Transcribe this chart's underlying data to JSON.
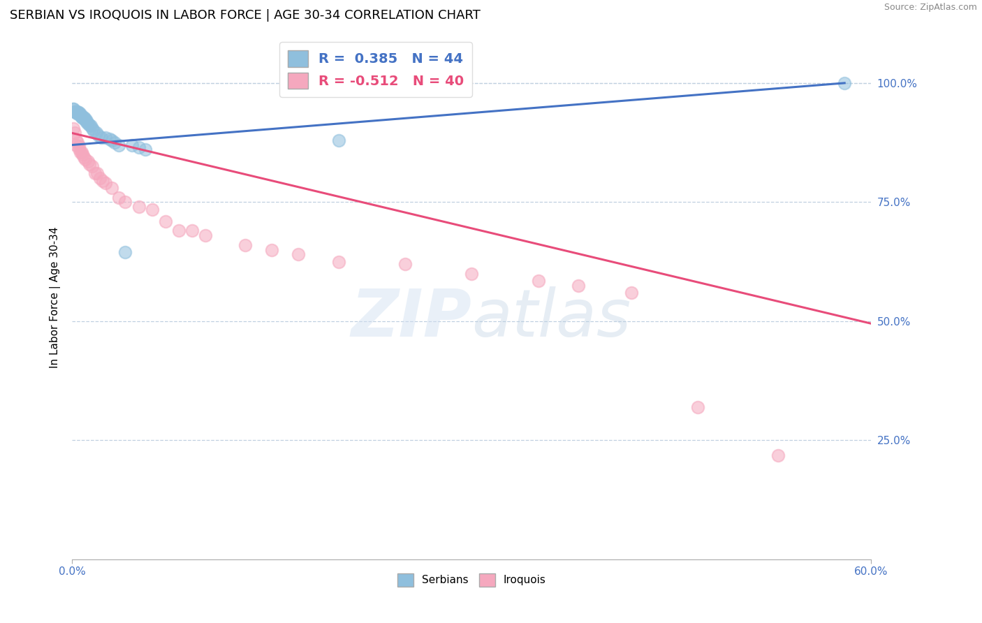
{
  "title": "SERBIAN VS IROQUOIS IN LABOR FORCE | AGE 30-34 CORRELATION CHART",
  "source_text": "Source: ZipAtlas.com",
  "ylabel": "In Labor Force | Age 30-34",
  "xlim": [
    0.0,
    0.6
  ],
  "ylim": [
    0.0,
    1.1
  ],
  "ytick_vals": [
    0.25,
    0.5,
    0.75,
    1.0
  ],
  "ytick_labels": [
    "25.0%",
    "50.0%",
    "75.0%",
    "100.0%"
  ],
  "serbian_R": 0.385,
  "serbian_N": 44,
  "iroquois_R": -0.512,
  "iroquois_N": 40,
  "serbian_color": "#8fbfdd",
  "iroquois_color": "#f5a8be",
  "serbian_line_color": "#4472c4",
  "iroquois_line_color": "#e84c7a",
  "legend_serbian_label": "Serbians",
  "legend_iroquois_label": "Iroquois",
  "serbian_x": [
    0.001,
    0.001,
    0.002,
    0.002,
    0.003,
    0.003,
    0.004,
    0.004,
    0.004,
    0.005,
    0.005,
    0.005,
    0.006,
    0.006,
    0.007,
    0.007,
    0.007,
    0.008,
    0.008,
    0.009,
    0.009,
    0.01,
    0.01,
    0.011,
    0.011,
    0.012,
    0.013,
    0.014,
    0.015,
    0.016,
    0.018,
    0.02,
    0.022,
    0.025,
    0.028,
    0.03,
    0.032,
    0.035,
    0.04,
    0.045,
    0.05,
    0.055,
    0.2,
    0.58
  ],
  "serbian_y": [
    0.945,
    0.945,
    0.94,
    0.94,
    0.94,
    0.938,
    0.94,
    0.938,
    0.935,
    0.938,
    0.935,
    0.935,
    0.935,
    0.932,
    0.93,
    0.93,
    0.928,
    0.93,
    0.928,
    0.928,
    0.925,
    0.925,
    0.922,
    0.92,
    0.918,
    0.915,
    0.912,
    0.91,
    0.905,
    0.9,
    0.895,
    0.89,
    0.885,
    0.885,
    0.882,
    0.88,
    0.875,
    0.87,
    0.645,
    0.87,
    0.865,
    0.86,
    0.88,
    1.0
  ],
  "iroquois_x": [
    0.001,
    0.002,
    0.003,
    0.003,
    0.004,
    0.005,
    0.005,
    0.006,
    0.007,
    0.008,
    0.009,
    0.01,
    0.012,
    0.013,
    0.015,
    0.017,
    0.019,
    0.021,
    0.023,
    0.025,
    0.03,
    0.035,
    0.04,
    0.05,
    0.06,
    0.07,
    0.08,
    0.09,
    0.1,
    0.13,
    0.15,
    0.17,
    0.2,
    0.25,
    0.3,
    0.35,
    0.38,
    0.42,
    0.47,
    0.53
  ],
  "iroquois_y": [
    0.905,
    0.895,
    0.88,
    0.87,
    0.875,
    0.868,
    0.862,
    0.855,
    0.855,
    0.85,
    0.845,
    0.84,
    0.835,
    0.83,
    0.825,
    0.81,
    0.81,
    0.8,
    0.795,
    0.79,
    0.78,
    0.76,
    0.75,
    0.74,
    0.735,
    0.71,
    0.69,
    0.69,
    0.68,
    0.66,
    0.65,
    0.64,
    0.625,
    0.62,
    0.6,
    0.585,
    0.575,
    0.56,
    0.32,
    0.218
  ],
  "watermark_zip": "ZIP",
  "watermark_atlas": "atlas",
  "background_color": "#ffffff",
  "grid_color": "#c0d0e0",
  "title_fontsize": 13,
  "axis_label_fontsize": 11,
  "tick_fontsize": 11,
  "legend_fontsize": 14
}
